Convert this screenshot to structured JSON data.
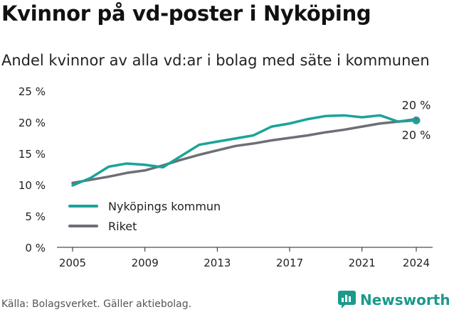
{
  "header": {
    "title": "Kvinnor på vd-poster i Nyköping",
    "subtitle": "Andel kvinnor av alla vd:ar i bolag med säte i kommunen"
  },
  "footer": {
    "source": "Källa: Bolagsverket. Gäller aktiebolag.",
    "brand": "Newsworthy",
    "brand_icon": "newsworthy-logo-icon"
  },
  "chart_data": {
    "type": "line",
    "x": [
      2005,
      2006,
      2007,
      2008,
      2009,
      2010,
      2011,
      2012,
      2013,
      2014,
      2015,
      2016,
      2017,
      2018,
      2019,
      2020,
      2021,
      2022,
      2023,
      2024
    ],
    "series": [
      {
        "name": "Nyköpings kommun",
        "color": "#1aa39a",
        "values": [
          9.9,
          11.1,
          12.9,
          13.4,
          13.2,
          12.8,
          14.6,
          16.4,
          16.9,
          17.4,
          17.9,
          19.3,
          19.8,
          20.5,
          21.0,
          21.1,
          20.8,
          21.1,
          20.1,
          20.3
        ]
      },
      {
        "name": "Riket",
        "color": "#6e6e78",
        "values": [
          10.3,
          10.8,
          11.3,
          11.9,
          12.3,
          13.1,
          14.0,
          14.8,
          15.5,
          16.2,
          16.6,
          17.1,
          17.5,
          17.9,
          18.4,
          18.8,
          19.3,
          19.8,
          20.1,
          20.5
        ]
      }
    ],
    "end_labels": [
      "20 %",
      "20 %"
    ],
    "ylim": [
      0,
      25
    ],
    "yticks": [
      0,
      5,
      10,
      15,
      20,
      25
    ],
    "ytick_labels": [
      "0 %",
      "5 %",
      "10 %",
      "15 %",
      "20 %",
      "25 %"
    ],
    "xticks": [
      2005,
      2009,
      2013,
      2017,
      2021,
      2024
    ],
    "xtick_labels": [
      "2005",
      "2009",
      "2013",
      "2017",
      "2021",
      "2024"
    ],
    "grid": false,
    "legend_position": "bottom-left",
    "xlabel": "",
    "ylabel": ""
  }
}
